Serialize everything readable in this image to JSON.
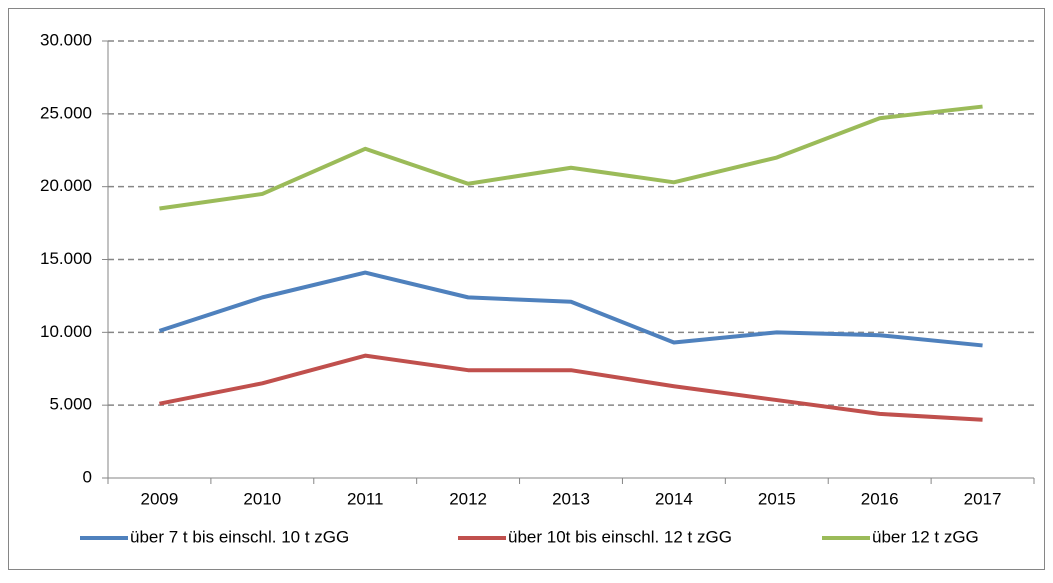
{
  "chart_data": {
    "type": "line",
    "categories": [
      "2009",
      "2010",
      "2011",
      "2012",
      "2013",
      "2014",
      "2015",
      "2016",
      "2017"
    ],
    "series": [
      {
        "name": "über 7 t bis einschl. 10 t zGG",
        "color": "#4f81bd",
        "values": [
          10100,
          12400,
          14100,
          12400,
          12100,
          9300,
          10000,
          9800,
          9100
        ]
      },
      {
        "name": "über 10t bis einschl. 12 t zGG",
        "color": "#c0504d",
        "values": [
          5100,
          6500,
          8400,
          7400,
          7400,
          6300,
          5350,
          4400,
          4000
        ]
      },
      {
        "name": "über 12 t zGG",
        "color": "#9bbb59",
        "values": [
          18500,
          19500,
          22600,
          20200,
          21300,
          20300,
          22000,
          24700,
          25500
        ]
      }
    ],
    "ylim": [
      0,
      30000
    ],
    "yticks": [
      0,
      {
        "value": 5000,
        "label": "5.000"
      },
      {
        "value": 10000,
        "label": "10.000"
      },
      {
        "value": 15000,
        "label": "15.000"
      },
      {
        "value": 20000,
        "label": "20.000"
      },
      {
        "value": 25000,
        "label": "25.000"
      },
      {
        "value": 30000,
        "label": "30.000"
      }
    ],
    "grid": true,
    "legend": "bottom"
  }
}
